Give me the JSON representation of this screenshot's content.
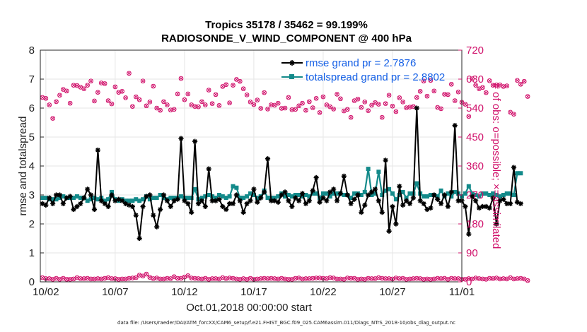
{
  "chart_data": {
    "type": "line",
    "title": "Tropics 35178 / 35462 = 99.199%",
    "subtitle": "RADIOSONDE_V_WIND_COMPONENT @ 400 hPa",
    "xlabel": "Oct.01,2018 00:00:00 start",
    "ylabel": "rmse and totalspread",
    "ylabel_right": "# of obs: o=possible; ×=assimilated",
    "footnote": "data file: /Users/raeder/DAI/ATM_forcXX/CAM6_setup/f.e21.FHIST_BGC.f09_025.CAM6assim.011/Diags_NTrS_2018-10/obs_diag_output.nc",
    "xlim": [
      0.6,
      31.0
    ],
    "ylim": [
      0,
      8
    ],
    "ylim_right": [
      0,
      720
    ],
    "x_ticks": [
      {
        "value": 1,
        "label": "10/02"
      },
      {
        "value": 6,
        "label": "10/07"
      },
      {
        "value": 11,
        "label": "10/12"
      },
      {
        "value": 16,
        "label": "10/17"
      },
      {
        "value": 21,
        "label": "10/22"
      },
      {
        "value": 26,
        "label": "10/27"
      },
      {
        "value": 31,
        "label": "11/01"
      }
    ],
    "y_ticks": [
      "0",
      "1",
      "2",
      "3",
      "4",
      "5",
      "6",
      "7",
      "8"
    ],
    "y_ticks_right": [
      "0",
      "90",
      "180",
      "270",
      "360",
      "450",
      "540",
      "630",
      "720"
    ],
    "x_step_days": 0.25,
    "x_start": 0.75,
    "legend_position": "top-right",
    "grid": true,
    "series": [
      {
        "name": "rmse grand pr = 2.7876",
        "color": "#000000",
        "marker": "asterisk",
        "values": [
          2.7,
          2.65,
          2.9,
          2.7,
          3.0,
          3.0,
          2.7,
          2.9,
          2.95,
          2.5,
          2.6,
          2.7,
          2.9,
          3.2,
          3.0,
          2.5,
          4.55,
          2.8,
          2.7,
          2.6,
          3.0,
          2.8,
          2.85,
          2.8,
          2.7,
          2.65,
          2.6,
          2.3,
          1.5,
          2.6,
          2.95,
          3.0,
          2.3,
          1.9,
          2.5,
          3.0,
          2.8,
          2.6,
          2.8,
          2.85,
          4.95,
          2.8,
          2.7,
          2.4,
          4.85,
          2.7,
          2.8,
          2.6,
          3.9,
          2.8,
          2.8,
          2.85,
          2.6,
          2.5,
          2.7,
          2.7,
          3.0,
          2.8,
          2.4,
          2.7,
          2.8,
          3.2,
          2.75,
          2.9,
          3.1,
          4.25,
          2.8,
          2.8,
          2.75,
          3.0,
          3.1,
          2.8,
          2.6,
          2.9,
          2.8,
          3.05,
          2.7,
          2.8,
          3.15,
          3.6,
          2.75,
          2.9,
          2.8,
          3.1,
          3.2,
          2.8,
          3.05,
          3.65,
          3.0,
          2.7,
          2.85,
          3.0,
          2.4,
          2.65,
          3.0,
          3.1,
          3.2,
          2.8,
          2.4,
          4.2,
          1.75,
          2.6,
          2.0,
          3.3,
          2.65,
          2.8,
          2.7,
          2.9,
          6.0,
          2.8,
          2.7,
          2.5,
          2.55,
          3.0,
          2.85,
          2.7,
          3.0,
          2.6,
          3.1,
          5.4,
          2.8,
          2.8,
          2.6,
          1.65,
          2.95,
          2.8,
          2.55,
          2.6,
          2.6,
          2.55,
          2.9,
          2.0,
          2.8,
          2.85,
          2.7,
          2.7,
          3.95,
          2.75,
          2.7
        ]
      },
      {
        "name": "totalspread grand pr = 2.8802",
        "color": "#138a8a",
        "marker": "square",
        "values": [
          2.9,
          2.9,
          2.85,
          2.85,
          2.85,
          2.9,
          2.95,
          2.9,
          2.9,
          2.9,
          2.95,
          2.9,
          2.9,
          2.8,
          2.85,
          2.9,
          2.85,
          2.9,
          2.8,
          2.85,
          3.1,
          2.85,
          2.8,
          2.85,
          2.8,
          2.8,
          2.8,
          2.85,
          2.8,
          2.85,
          2.95,
          2.85,
          2.9,
          2.9,
          3.0,
          2.9,
          2.85,
          2.9,
          2.9,
          2.9,
          2.95,
          2.9,
          2.9,
          2.9,
          3.2,
          2.85,
          2.9,
          2.95,
          3.0,
          2.95,
          2.9,
          3.0,
          2.95,
          2.9,
          2.95,
          3.3,
          3.25,
          2.9,
          2.9,
          2.95,
          3.05,
          3.0,
          2.9,
          2.95,
          3.15,
          2.9,
          2.9,
          2.9,
          2.95,
          3.05,
          2.95,
          3.0,
          2.95,
          3.0,
          3.0,
          2.95,
          3.0,
          2.95,
          3.05,
          3.05,
          2.9,
          3.05,
          3.05,
          2.95,
          3.05,
          3.05,
          3.05,
          3.0,
          3.0,
          2.9,
          3.05,
          3.05,
          3.0,
          3.1,
          3.9,
          3.0,
          3.05,
          3.8,
          3.0,
          3.15,
          3.2,
          3.05,
          2.85,
          3.0,
          3.1,
          2.9,
          3.05,
          3.05,
          3.4,
          3.05,
          2.95,
          2.95,
          3.0,
          3.0,
          2.95,
          3.15,
          2.95,
          3.05,
          2.95,
          3.1,
          3.05,
          2.95,
          3.05,
          3.3,
          3.05,
          3.0,
          2.95,
          3.05,
          3.05,
          3.0,
          3.05,
          3.0,
          2.95,
          3.0,
          3.05,
          3.05,
          3.0,
          3.75,
          3.75
        ]
      }
    ],
    "obs_possible": {
      "color": "#d0106a",
      "marker": "circle",
      "values": [
        573,
        570,
        550,
        508,
        560,
        580,
        598,
        593,
        555,
        611,
        610,
        605,
        600,
        611,
        624,
        562,
        589,
        618,
        616,
        563,
        553,
        606,
        589,
        592,
        572,
        648,
        545,
        575,
        566,
        624,
        547,
        559,
        608,
        540,
        533,
        560,
        550,
        534,
        536,
        584,
        632,
        566,
        584,
        550,
        545,
        544,
        560,
        550,
        596,
        554,
        582,
        548,
        607,
        613,
        556,
        611,
        629,
        623,
        600,
        581,
        559,
        551,
        565,
        539,
        588,
        537,
        550,
        549,
        555,
        539,
        540,
        573,
        535,
        536,
        547,
        555,
        533,
        560,
        541,
        570,
        526,
        575,
        550,
        544,
        537,
        583,
        569,
        531,
        536,
        511,
        563,
        568,
        542,
        559,
        532,
        549,
        557,
        552,
        511,
        554,
        580,
        546,
        529,
        572,
        559,
        541,
        543,
        545,
        573,
        592,
        624,
        577,
        626,
        593,
        542,
        538,
        583,
        582,
        614,
        563,
        590,
        558,
        552,
        514,
        631,
        611,
        600,
        604,
        588,
        625,
        611,
        612,
        612,
        607,
        609,
        527,
        521,
        626,
        614,
        623,
        576
      ]
    },
    "obs_possible_low": {
      "values": [
        13,
        10,
        10,
        8,
        11,
        8,
        11,
        8,
        8,
        9,
        13,
        10,
        10,
        11,
        9,
        9,
        10,
        9,
        11,
        13,
        10,
        10,
        8,
        9,
        9,
        11,
        12,
        13,
        21,
        18,
        24,
        14,
        10,
        12,
        9,
        9,
        11,
        10,
        16,
        11,
        11,
        15,
        19,
        12,
        11,
        10,
        9,
        11,
        8,
        10,
        10,
        9,
        13,
        10,
        12,
        11,
        9,
        8,
        10,
        8,
        11,
        8,
        9,
        10,
        11,
        10,
        11,
        10,
        9,
        11,
        9,
        8,
        8,
        11,
        12,
        9,
        10,
        10,
        11,
        12,
        12,
        11,
        10,
        13,
        12,
        9,
        9,
        8,
        12,
        11,
        11,
        8,
        9,
        8,
        11,
        10,
        10,
        13,
        11,
        10,
        10,
        9,
        12,
        10,
        11,
        8,
        9,
        10,
        11,
        10,
        8,
        9,
        8,
        9,
        11,
        10,
        11,
        8,
        11,
        10,
        10,
        8,
        8,
        10,
        9,
        12,
        10,
        9,
        8,
        11,
        10,
        12,
        9,
        10,
        9,
        13,
        9,
        10,
        11,
        9,
        4
      ]
    }
  },
  "legend": {
    "rmse_label": "rmse grand pr = 2.7876",
    "spread_label": "totalspread grand pr = 2.8802"
  }
}
